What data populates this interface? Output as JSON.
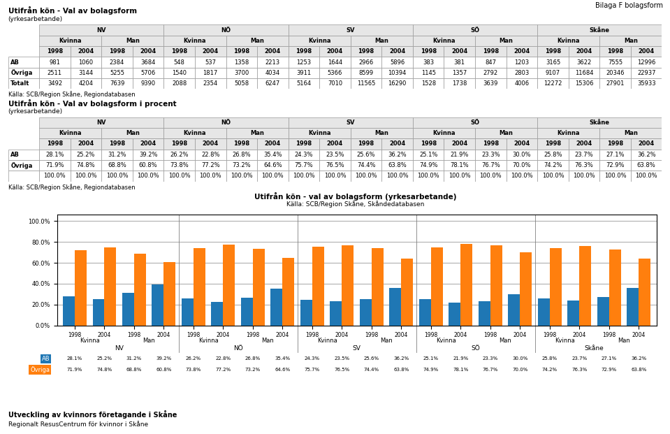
{
  "annotations": [
    "Bilaga F bolagsform",
    "Utveckling av kvinnors företagande i Skåne",
    "Regionalt ResusCentrum för kvinnor i Skåne"
  ],
  "chart_data": [
    {
      "type": "table",
      "title": "Utifrån kön - Val av bolagsform",
      "subtitle": "(yrkesarbetande)",
      "annotations": [
        "Källa: SCB/Region Skåne, Regiondatabasen"
      ],
      "header": [
        [
          "NV",
          "NÖ",
          "SV",
          "SÖ",
          "Skåne"
        ],
        [
          "Kvinna",
          "Man"
        ],
        [
          "1998",
          "2004"
        ]
      ],
      "categories": [
        "AB",
        "Övriga",
        "Totalt"
      ],
      "values": [
        [
          981,
          1060,
          2384,
          3684,
          548,
          537,
          1358,
          2213,
          1253,
          1644,
          2966,
          5896,
          383,
          381,
          847,
          1203,
          3165,
          3622,
          7555,
          12996
        ],
        [
          2511,
          3144,
          5255,
          5706,
          1540,
          1817,
          3700,
          4034,
          3911,
          5366,
          8599,
          10394,
          1145,
          1357,
          2792,
          2803,
          9107,
          11684,
          20346,
          22937
        ],
        [
          3492,
          4204,
          7639,
          9390,
          2088,
          2354,
          5058,
          6247,
          5164,
          7010,
          11565,
          16290,
          1528,
          1738,
          3639,
          4006,
          12272,
          15306,
          27901,
          35933
        ]
      ]
    },
    {
      "type": "table",
      "title": "Utifrån kön - Val av bolagsform i procent",
      "subtitle": "(yrkesarbetande)",
      "annotations": [
        "Källa: SCB/Region Skåne, Regiondatabasen"
      ],
      "header": [
        [
          "NV",
          "NÖ",
          "SV",
          "SÖ",
          "Skåne"
        ],
        [
          "Kvinna",
          "Man"
        ],
        [
          "1998",
          "2004"
        ]
      ],
      "categories": [
        "AB",
        "Övriga",
        null
      ],
      "values": [
        [
          28.1,
          25.2,
          31.2,
          39.2,
          26.2,
          22.8,
          26.8,
          35.4,
          24.3,
          23.5,
          25.6,
          36.2,
          25.1,
          21.9,
          23.3,
          30.0,
          25.8,
          23.7,
          27.1,
          36.2
        ],
        [
          71.9,
          74.8,
          68.8,
          60.8,
          73.8,
          77.2,
          73.2,
          64.6,
          75.7,
          76.5,
          74.4,
          63.8,
          74.9,
          78.1,
          76.7,
          70.0,
          74.2,
          76.3,
          72.9,
          63.8
        ],
        [
          100.0,
          100.0,
          100.0,
          100.0,
          100.0,
          100.0,
          100.0,
          100.0,
          100.0,
          100.0,
          100.0,
          100.0,
          100.0,
          100.0,
          100.0,
          100.0,
          100.0,
          100.0,
          100.0,
          100.0
        ]
      ],
      "value_labels": [
        [
          "28.1%",
          "25.2%",
          "31.2%",
          "39.2%",
          "26.2%",
          "22.8%",
          "26.8%",
          "35.4%",
          "24.3%",
          "23.5%",
          "25.6%",
          "36.2%",
          "25.1%",
          "21.9%",
          "23.3%",
          "30.0%",
          "25.8%",
          "23.7%",
          "27.1%",
          "36.2%"
        ],
        [
          "71.9%",
          "74.8%",
          "68.8%",
          "60.8%",
          "73.8%",
          "77.2%",
          "73.2%",
          "64.6%",
          "75.7%",
          "76.5%",
          "74.4%",
          "63.8%",
          "74.9%",
          "78.1%",
          "76.7%",
          "70.0%",
          "74.2%",
          "76.3%",
          "72.9%",
          "63.8%"
        ],
        [
          "100.0%",
          "100.0%",
          "100.0%",
          "100.0%",
          "100.0%",
          "100.0%",
          "100.0%",
          "100.0%",
          "100.0%",
          "100.0%",
          "100.0%",
          "100.0%",
          "100.0%",
          "100.0%",
          "100.0%",
          "100.0%",
          "100.0%",
          "100.0%",
          "100.0%",
          "100.0%"
        ]
      ]
    },
    {
      "type": "bar",
      "title": "Utifrån kön - val av bolagsform (yrkesarbetande)",
      "subtitle": "Källa: SCB/Region Skåne, Skåndedatabasen",
      "categories": [
        "1998",
        "2004",
        "1998",
        "2004",
        "1998",
        "2004",
        "1998",
        "2004",
        "1998",
        "2004",
        "1998",
        "2004",
        "1998",
        "2004",
        "1998",
        "2004",
        "1998",
        "2004",
        "1998",
        "2004"
      ],
      "groups": [
        [
          "Kvinna",
          "Man",
          "Kvinna",
          "Man",
          "Kvinna",
          "Man",
          "Kvinna",
          "Man",
          "Kvinna",
          "Man"
        ],
        [
          "NV",
          "NÖ",
          "SV",
          "SÖ",
          "Skåne"
        ]
      ],
      "series": [
        {
          "name": "AB",
          "values": [
            28.1,
            25.2,
            31.2,
            39.2,
            26.2,
            22.8,
            26.8,
            35.4,
            24.3,
            23.5,
            25.6,
            36.2,
            25.1,
            21.9,
            23.3,
            30.0,
            25.8,
            23.7,
            27.1,
            36.2
          ],
          "value_labels": [
            "28.1%",
            "25.2%",
            "31.2%",
            "39.2%",
            "26.2%",
            "22.8%",
            "26.8%",
            "35.4%",
            "24.3%",
            "23.5%",
            "25.6%",
            "36.2%",
            "25.1%",
            "21.9%",
            "23.3%",
            "30.0%",
            "25.8%",
            "23.7%",
            "27.1%",
            "36.2%"
          ]
        },
        {
          "name": "Övriga",
          "values": [
            71.9,
            74.8,
            68.8,
            60.8,
            73.8,
            77.2,
            73.2,
            64.6,
            75.7,
            76.5,
            74.4,
            63.8,
            74.9,
            78.1,
            76.7,
            70.0,
            74.2,
            76.3,
            72.9,
            63.8
          ],
          "value_labels": [
            "71.9%",
            "74.8%",
            "68.8%",
            "60.8%",
            "73.8%",
            "77.2%",
            "73.2%",
            "64.6%",
            "75.7%",
            "76.5%",
            "74.4%",
            "63.8%",
            "74.9%",
            "78.1%",
            "76.7%",
            "70.0%",
            "74.2%",
            "76.3%",
            "72.9%",
            "63.8%"
          ]
        }
      ],
      "ylim": [
        0,
        106
      ],
      "yticks": [
        {
          "value": 0,
          "label": "0.0%"
        },
        {
          "value": 20,
          "label": "20.0%"
        },
        {
          "value": 40,
          "label": "40.0%"
        },
        {
          "value": 60,
          "label": "60.0%"
        },
        {
          "value": 80,
          "label": "80.0%"
        },
        {
          "value": 100,
          "label": "100.0%"
        }
      ],
      "grid": true,
      "data_labels": true
    }
  ]
}
